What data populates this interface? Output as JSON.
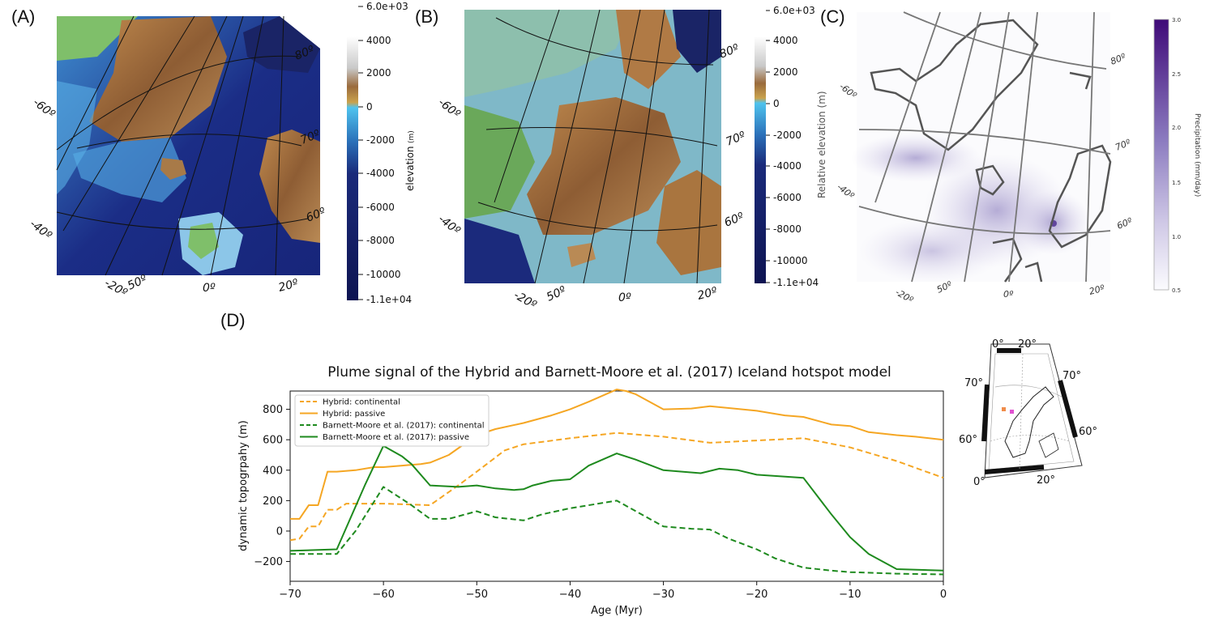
{
  "panels": {
    "a": {
      "label": "(A)",
      "lat_labels": [
        "80º",
        "70º",
        "60º"
      ],
      "lon_labels": [
        "-60º",
        "-40º",
        "-20º",
        "50º",
        "0º",
        "20º"
      ],
      "colorbar": {
        "title": "elevation",
        "unit": "(m)",
        "ticks": [
          "6.0e+03",
          "4000",
          "2000",
          "0",
          "-2000",
          "-4000",
          "-6000",
          "-8000",
          "-10000",
          "-1.1e+04"
        ]
      }
    },
    "b": {
      "label": "(B)",
      "lat_labels": [
        "80º",
        "70º",
        "60º"
      ],
      "lon_labels": [
        "-60º",
        "-40º",
        "-20º",
        "50º",
        "0º",
        "20º"
      ],
      "colorbar": {
        "title": "Relative elevation (m)",
        "ticks": [
          "6.0e+03",
          "4000",
          "2000",
          "0",
          "-2000",
          "-4000",
          "-6000",
          "-8000",
          "-10000",
          "-1.1e+04"
        ]
      }
    },
    "c": {
      "label": "(C)",
      "lat_labels": [
        "80º",
        "70º",
        "60º"
      ],
      "lon_labels": [
        "-60º",
        "-40º",
        "-20º",
        "50º",
        "0º",
        "20º"
      ],
      "colorbar": {
        "title": "Precipitation (mm/day)",
        "ticks": [
          "3.0",
          "2.5",
          "2.0",
          "1.5",
          "1.0",
          "0.5"
        ]
      }
    },
    "d": {
      "label": "(D)"
    }
  },
  "inset_map": {
    "lat_labels": [
      "70°",
      "70°",
      "60°",
      "60°"
    ],
    "lon_labels": [
      "0°",
      "20°",
      "0°",
      "20°"
    ]
  },
  "colors": {
    "hybrid": "#f5a623",
    "barnett": "#1e8a1e",
    "colorbar_precip_top": "#3f0a78",
    "ocean_deep": "#1a1f6b",
    "land_low": "#6aa85a"
  },
  "chart_data": {
    "type": "line",
    "title": "Plume signal of the Hybrid and Barnett-Moore et al. (2017) Iceland hotspot model",
    "xlabel": "Age (Myr)",
    "ylabel": "dynamic topogrpahy (m)",
    "xlim": [
      -70,
      0
    ],
    "ylim": [
      -330,
      920
    ],
    "xticks": [
      -70,
      -60,
      -50,
      -40,
      -30,
      -20,
      -10,
      0
    ],
    "yticks": [
      -200,
      0,
      200,
      400,
      600,
      800
    ],
    "legend_position": "upper-left",
    "series": [
      {
        "name": "Hybrid: continental",
        "color": "#f5a623",
        "dash": true,
        "x": [
          -70,
          -69,
          -68,
          -67,
          -66,
          -65,
          -64,
          -62,
          -60,
          -55,
          -52,
          -50,
          -47,
          -45,
          -40,
          -35,
          -30,
          -25,
          -20,
          -15,
          -10,
          -5,
          0
        ],
        "y": [
          -60,
          -50,
          30,
          30,
          140,
          140,
          180,
          180,
          180,
          170,
          300,
          390,
          530,
          570,
          610,
          645,
          620,
          580,
          595,
          610,
          550,
          460,
          350
        ]
      },
      {
        "name": "Hybrid: passive",
        "color": "#f5a623",
        "dash": false,
        "x": [
          -70,
          -69,
          -68,
          -67,
          -66,
          -65,
          -63,
          -61,
          -60,
          -58,
          -56,
          -55,
          -53,
          -50,
          -48,
          -45,
          -42,
          -40,
          -38,
          -35,
          -34,
          -33,
          -30,
          -27,
          -25,
          -20,
          -17,
          -15,
          -12,
          -10,
          -8,
          -5,
          -3,
          0
        ],
        "y": [
          80,
          80,
          170,
          170,
          390,
          390,
          400,
          420,
          420,
          430,
          440,
          450,
          500,
          630,
          670,
          710,
          760,
          800,
          850,
          930,
          920,
          900,
          800,
          805,
          820,
          790,
          760,
          750,
          700,
          690,
          650,
          630,
          620,
          600
        ]
      },
      {
        "name": "Barnett-Moore et al. (2017): continental",
        "color": "#1e8a1e",
        "dash": true,
        "x": [
          -70,
          -65,
          -63,
          -60,
          -57,
          -55,
          -53,
          -50,
          -48,
          -45,
          -43,
          -40,
          -35,
          -30,
          -27,
          -25,
          -23,
          -20,
          -18,
          -15,
          -12,
          -10,
          -5,
          0
        ],
        "y": [
          -150,
          -150,
          0,
          290,
          170,
          80,
          80,
          130,
          90,
          70,
          110,
          150,
          200,
          30,
          15,
          10,
          -50,
          -120,
          -180,
          -240,
          -260,
          -270,
          -280,
          -285
        ]
      },
      {
        "name": "Barnett-Moore et al. (2017): passive",
        "color": "#1e8a1e",
        "dash": false,
        "x": [
          -70,
          -65,
          -62,
          -60,
          -58,
          -57,
          -55,
          -52,
          -50,
          -48,
          -46,
          -45,
          -44,
          -42,
          -40,
          -38,
          -35,
          -33,
          -30,
          -28,
          -26,
          -24,
          -22,
          -20,
          -15,
          -12,
          -10,
          -8,
          -5,
          0
        ],
        "y": [
          -130,
          -120,
          300,
          560,
          490,
          440,
          300,
          290,
          300,
          280,
          270,
          275,
          300,
          330,
          340,
          430,
          510,
          470,
          400,
          390,
          380,
          410,
          400,
          370,
          350,
          110,
          -40,
          -150,
          -250,
          -260
        ]
      }
    ]
  }
}
